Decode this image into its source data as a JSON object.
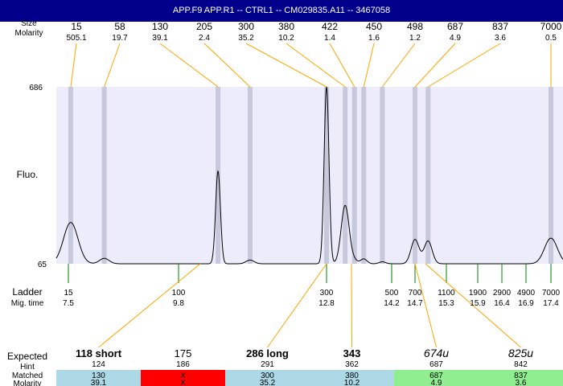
{
  "title": "APP.F9  APP.R1 -- CTRL1 -- CM029835.A11 -- 3467058",
  "labels": {
    "size": "Size",
    "molarity": "Molarity",
    "fluo": "Fluo.",
    "ladder": "Ladder",
    "mig_time": "Mig. time",
    "expected": "Expected",
    "hint": "Hint",
    "matched": "Matched",
    "molarity_bottom": "Molarity"
  },
  "top_peaks": [
    {
      "size": "15",
      "molarity": "505.1"
    },
    {
      "size": "58",
      "molarity": "19.7"
    },
    {
      "size": "130",
      "molarity": "39.1"
    },
    {
      "size": "205",
      "molarity": "2.4"
    },
    {
      "size": "300",
      "molarity": "35.2"
    },
    {
      "size": "380",
      "molarity": "10.2"
    },
    {
      "size": "422",
      "molarity": "1.4"
    },
    {
      "size": "450",
      "molarity": "1.6"
    },
    {
      "size": "498",
      "molarity": "1.2"
    },
    {
      "size": "687",
      "molarity": "4.9"
    },
    {
      "size": "837",
      "molarity": "3.6"
    },
    {
      "size": "7000",
      "molarity": "0.5"
    }
  ],
  "chart_data": {
    "type": "line",
    "ylabel": "Fluo.",
    "ylim": [
      65,
      686
    ],
    "y_ticks": [
      "686",
      "65"
    ],
    "xlim_mig_time": [
      7.5,
      17.4
    ],
    "ladder": [
      {
        "size": "15",
        "mig_time": "7.5"
      },
      {
        "size": "100",
        "mig_time": "9.8"
      },
      {
        "size": "300",
        "mig_time": "12.8"
      },
      {
        "size": "500",
        "mig_time": "14.2"
      },
      {
        "size": "700",
        "mig_time": "14.7"
      },
      {
        "size": "1100",
        "mig_time": "15.3"
      },
      {
        "size": "1900",
        "mig_time": "15.9"
      },
      {
        "size": "2900",
        "mig_time": "16.4"
      },
      {
        "size": "4900",
        "mig_time": "16.9"
      },
      {
        "size": "7000",
        "mig_time": "17.4"
      }
    ],
    "peaks": [
      {
        "mig_time": 7.55,
        "height": 210
      },
      {
        "mig_time": 8.25,
        "height": 84
      },
      {
        "mig_time": 10.6,
        "height": 390
      },
      {
        "mig_time": 11.25,
        "height": 78
      },
      {
        "mig_time": 12.8,
        "height": 686
      },
      {
        "mig_time": 13.2,
        "height": 270
      },
      {
        "mig_time": 13.4,
        "height": 75
      },
      {
        "mig_time": 13.6,
        "height": 82
      },
      {
        "mig_time": 14.0,
        "height": 72
      },
      {
        "mig_time": 14.7,
        "height": 150
      },
      {
        "mig_time": 14.95,
        "height": 145
      },
      {
        "mig_time": 17.4,
        "height": 155
      }
    ]
  },
  "bottom_table": [
    {
      "expected": "118 short",
      "style": "bold",
      "hint": "124",
      "matched": "130",
      "molarity": "39.1",
      "bg": "#add8e6"
    },
    {
      "expected": "175",
      "style": "normal",
      "hint": "186",
      "matched": "X",
      "molarity": "X",
      "bg": "#ff0000"
    },
    {
      "expected": "286 long",
      "style": "bold",
      "hint": "291",
      "matched": "300",
      "molarity": "35.2",
      "bg": "#add8e6"
    },
    {
      "expected": "343",
      "style": "bold",
      "hint": "362",
      "matched": "380",
      "molarity": "10.2",
      "bg": "#add8e6"
    },
    {
      "expected": "674u",
      "style": "italic",
      "hint": "687",
      "matched": "687",
      "molarity": "4.9",
      "bg": "#90ee90"
    },
    {
      "expected": "825u",
      "style": "italic",
      "hint": "842",
      "matched": "837",
      "molarity": "3.6",
      "bg": "#90ee90"
    }
  ],
  "colors": {
    "title_bg": "#00008b",
    "plot_bg": "#ececfb",
    "band": "#c8c8dc",
    "connector": "#ffa500",
    "ladder_line": "#008000",
    "trace": "#000000"
  }
}
